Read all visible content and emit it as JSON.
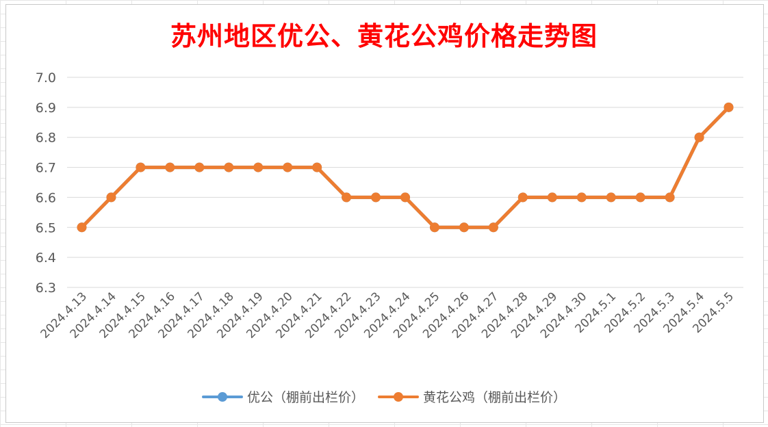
{
  "chart_data": {
    "type": "line",
    "title": "苏州地区优公、黄花公鸡价格走势图",
    "categories": [
      "2024.4.13",
      "2024.4.14",
      "2024.4.15",
      "2024.4.16",
      "2024.4.17",
      "2024.4.18",
      "2024.4.19",
      "2024.4.20",
      "2024.4.21",
      "2024.4.22",
      "2024.4.23",
      "2024.4.24",
      "2024.4.25",
      "2024.4.26",
      "2024.4.27",
      "2024.4.28",
      "2024.4.29",
      "2024.4.30",
      "2024.5.1",
      "2024.5.2",
      "2024.5.3",
      "2024.5.4",
      "2024.5.5"
    ],
    "yticks": [
      "7.0",
      "6.9",
      "6.8",
      "6.7",
      "6.6",
      "6.5",
      "6.4",
      "6.3"
    ],
    "ylim": [
      6.3,
      7.0
    ],
    "grid": true,
    "legend_position": "bottom",
    "series": [
      {
        "name": "优公（棚前出栏价）",
        "color": "#5b9bd5",
        "values": [
          6.5,
          6.6,
          6.7,
          6.7,
          6.7,
          6.7,
          6.7,
          6.7,
          6.7,
          6.6,
          6.6,
          6.6,
          6.5,
          6.5,
          6.5,
          6.6,
          6.6,
          6.6,
          6.6,
          6.6,
          6.6,
          6.8,
          6.9
        ]
      },
      {
        "name": "黄花公鸡（棚前出栏价）",
        "color": "#ed7d31",
        "values": [
          6.5,
          6.6,
          6.7,
          6.7,
          6.7,
          6.7,
          6.7,
          6.7,
          6.7,
          6.6,
          6.6,
          6.6,
          6.5,
          6.5,
          6.5,
          6.6,
          6.6,
          6.6,
          6.6,
          6.6,
          6.6,
          6.8,
          6.9
        ]
      }
    ]
  }
}
